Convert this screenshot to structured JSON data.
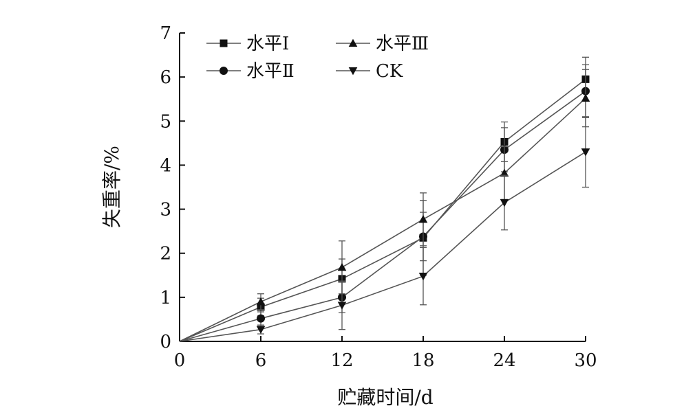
{
  "chart_data": {
    "type": "line",
    "xlabel": "贮藏时间/d",
    "ylabel": "失重率/%",
    "x": [
      0,
      6,
      12,
      18,
      24,
      30
    ],
    "xticks": [
      "0",
      "6",
      "12",
      "18",
      "24",
      "30"
    ],
    "yticks": [
      "0",
      "1",
      "2",
      "3",
      "4",
      "5",
      "6",
      "7"
    ],
    "xlim": [
      0,
      30
    ],
    "ylim": [
      0,
      7
    ],
    "grid": false,
    "legend_position": "top-left",
    "series": [
      {
        "name": "水平Ⅰ",
        "marker": "square",
        "values": [
          0,
          0.78,
          1.42,
          2.35,
          4.53,
          5.95
        ],
        "errors": [
          0,
          0.2,
          0.45,
          0.85,
          0.45,
          0.5
        ]
      },
      {
        "name": "水平Ⅱ",
        "marker": "circle",
        "values": [
          0,
          0.52,
          1.0,
          2.38,
          4.35,
          5.68
        ],
        "errors": [
          0,
          0.15,
          0.35,
          0.55,
          0.5,
          0.6
        ]
      },
      {
        "name": "水平Ⅲ",
        "marker": "triangle-up",
        "values": [
          0,
          0.9,
          1.68,
          2.77,
          3.82,
          5.52
        ],
        "errors": [
          0,
          0.18,
          0.6,
          0.6,
          0.6,
          0.65
        ]
      },
      {
        "name": "CK",
        "marker": "triangle-down",
        "values": [
          0,
          0.27,
          0.82,
          1.48,
          3.15,
          4.3
        ],
        "errors": [
          0,
          0.1,
          0.55,
          0.65,
          0.62,
          0.8
        ]
      }
    ],
    "colors": {
      "line": "#555555",
      "marker": "#111111",
      "axis": "#111111"
    }
  }
}
